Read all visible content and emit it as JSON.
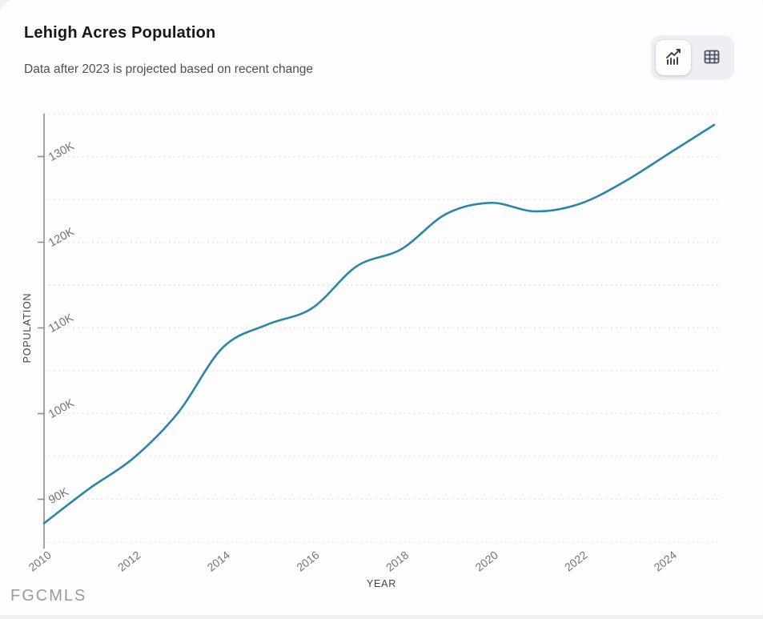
{
  "header": {
    "title": "Lehigh Acres Population",
    "subtitle": "Data after 2023 is projected based on recent change"
  },
  "toolbar": {
    "chart_view_icon": "line-chart-icon",
    "table_view_icon": "table-icon",
    "selected_view": "chart"
  },
  "watermark": "FGCMLS",
  "colors": {
    "line": "#2b86a6",
    "axis": "#878e96",
    "grid": "#d9dadc",
    "tick_text": "#70747c",
    "axis_title_text": "#3f434b",
    "title_text": "#16161e",
    "subtitle_text": "#4b4f58",
    "toggle_bg": "#edeff4",
    "toggle_selected_bg": "#fefefe",
    "icon": "#343a44"
  },
  "chart_data": {
    "type": "line",
    "title": "Lehigh Acres Population",
    "xlabel": "YEAR",
    "ylabel": "POPULATION",
    "x": [
      2010,
      2011,
      2012,
      2013,
      2014,
      2015,
      2016,
      2017,
      2018,
      2019,
      2020,
      2021,
      2022,
      2023,
      2024,
      2025
    ],
    "series": [
      {
        "name": "Population",
        "values": [
          87200,
          91200,
          94800,
          100100,
          107700,
          110400,
          112300,
          117200,
          119200,
          123300,
          124600,
          123600,
          124500,
          127100,
          130400,
          133700
        ]
      }
    ],
    "x_tick_labels": [
      "2010",
      "2012",
      "2014",
      "2016",
      "2018",
      "2020",
      "2022",
      "2024"
    ],
    "x_ticks": [
      2010,
      2012,
      2014,
      2016,
      2018,
      2020,
      2022,
      2024
    ],
    "y_tick_labels": [
      "90K",
      "100K",
      "110K",
      "120K",
      "130K"
    ],
    "y_ticks": [
      90000,
      100000,
      110000,
      120000,
      130000
    ],
    "y_grid_step": 5000,
    "ylim": [
      85000,
      135000
    ],
    "xlim": [
      2010,
      2025
    ],
    "grid": "horizontal dotted",
    "legend": "none",
    "annotation": "values after 2023 are projected"
  }
}
